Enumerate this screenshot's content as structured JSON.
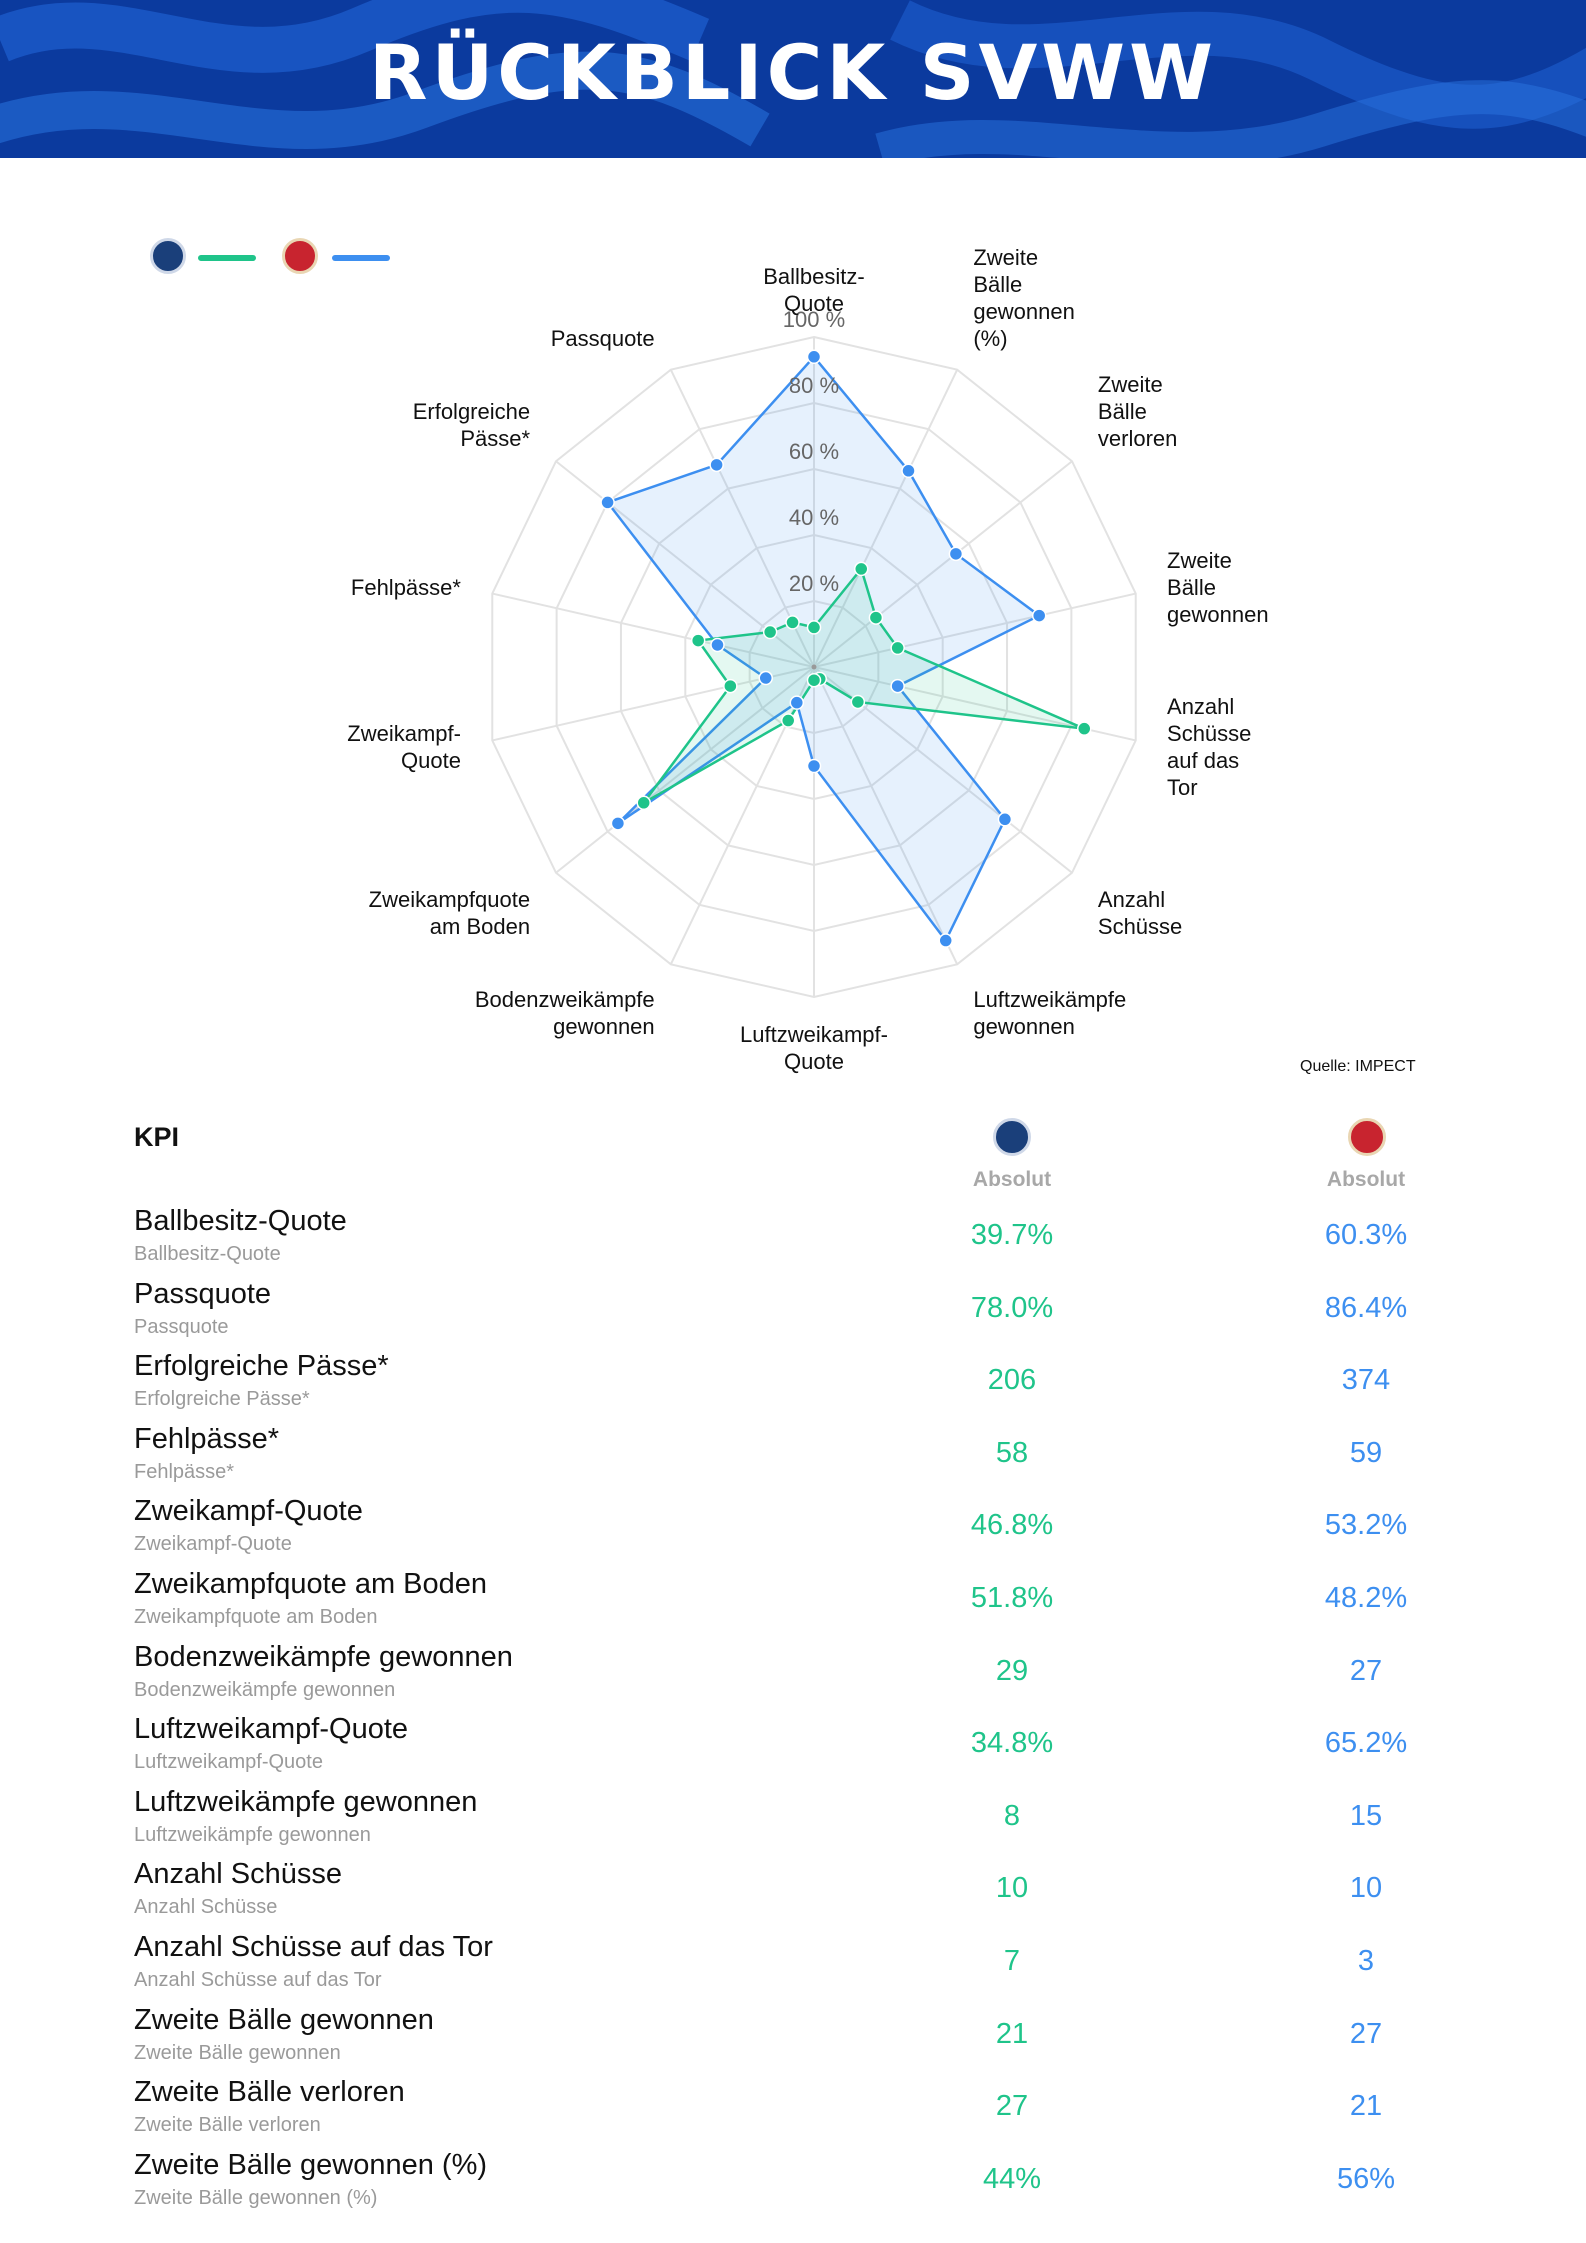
{
  "header": {
    "title": "RÜCKBLICK SVWW"
  },
  "colors": {
    "team1": "#1fc48a",
    "team2": "#3d8ff0",
    "header_bg": "#0b3a9e"
  },
  "legend": {
    "team1_icon": "msv-duisburg-crest-icon",
    "team2_icon": "sv-wehen-wiesbaden-crest-icon"
  },
  "source": "Quelle: IMPECT",
  "chart_data": {
    "type": "radar",
    "categories": [
      "Ballbesitz-\nQuote",
      "Zweite\nBälle\ngewonnen\n(%)",
      "Zweite\nBälle\nverloren",
      "Zweite\nBälle\ngewonnen",
      "Anzahl\nSchüsse\nauf das\nTor",
      "Anzahl\nSchüsse",
      "Luftzweikämpfe\ngewonnen",
      "Luftzweikampf-\nQuote",
      "Bodenzweikämpfe\ngewonnen",
      "Zweikampfquote\nam Boden",
      "Zweikampf-\nQuote",
      "Fehlpässe*",
      "Erfolgreiche\nPässe*",
      "Passquote"
    ],
    "rlim": [
      0,
      100
    ],
    "ticks": [
      "20 %",
      "40 %",
      "60 %",
      "80 %",
      "100 %"
    ],
    "tick_values": [
      20,
      40,
      60,
      80,
      100
    ],
    "series": [
      {
        "values": [
          12,
          33,
          24,
          26,
          84,
          17,
          4,
          4,
          18,
          66,
          26,
          36,
          17,
          15
        ]
      },
      {
        "values": [
          94,
          66,
          55,
          70,
          26,
          74,
          92,
          30,
          12,
          76,
          15,
          30,
          80,
          68
        ]
      }
    ],
    "grid": true
  },
  "table": {
    "heading": "KPI",
    "col1_header": "Absolut",
    "col2_header": "Absolut",
    "rows": [
      {
        "label": "Ballbesitz-Quote",
        "sub": "Ballbesitz-Quote",
        "v1": "39.7%",
        "v2": "60.3%"
      },
      {
        "label": "Passquote",
        "sub": "Passquote",
        "v1": "78.0%",
        "v2": "86.4%"
      },
      {
        "label": "Erfolgreiche Pässe*",
        "sub": "Erfolgreiche Pässe*",
        "v1": "206",
        "v2": "374"
      },
      {
        "label": "Fehlpässe*",
        "sub": "Fehlpässe*",
        "v1": "58",
        "v2": "59"
      },
      {
        "label": "Zweikampf-Quote",
        "sub": "Zweikampf-Quote",
        "v1": "46.8%",
        "v2": "53.2%"
      },
      {
        "label": "Zweikampfquote am Boden",
        "sub": "Zweikampfquote am Boden",
        "v1": "51.8%",
        "v2": "48.2%"
      },
      {
        "label": "Bodenzweikämpfe gewonnen",
        "sub": "Bodenzweikämpfe gewonnen",
        "v1": "29",
        "v2": "27"
      },
      {
        "label": "Luftzweikampf-Quote",
        "sub": "Luftzweikampf-Quote",
        "v1": "34.8%",
        "v2": "65.2%"
      },
      {
        "label": "Luftzweikämpfe gewonnen",
        "sub": "Luftzweikämpfe gewonnen",
        "v1": "8",
        "v2": "15"
      },
      {
        "label": "Anzahl Schüsse",
        "sub": "Anzahl Schüsse",
        "v1": "10",
        "v2": "10"
      },
      {
        "label": "Anzahl Schüsse auf das Tor",
        "sub": "Anzahl Schüsse auf das Tor",
        "v1": "7",
        "v2": "3"
      },
      {
        "label": "Zweite Bälle gewonnen",
        "sub": "Zweite Bälle gewonnen",
        "v1": "21",
        "v2": "27"
      },
      {
        "label": "Zweite Bälle verloren",
        "sub": "Zweite Bälle verloren",
        "v1": "27",
        "v2": "21"
      },
      {
        "label": "Zweite Bälle gewonnen (%)",
        "sub": "Zweite Bälle gewonnen (%)",
        "v1": "44%",
        "v2": "56%"
      }
    ]
  }
}
